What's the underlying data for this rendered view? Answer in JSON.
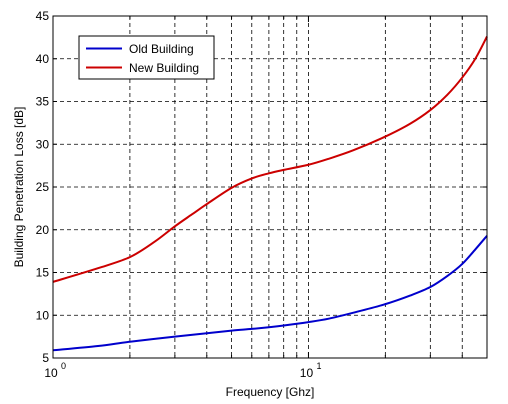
{
  "chart_data": {
    "type": "line",
    "xlabel": "Frequency [Ghz]",
    "ylabel": "Building Penetration Loss [dB]",
    "xscale": "log",
    "xlim": [
      1,
      50
    ],
    "ylim": [
      5,
      45
    ],
    "grid": true,
    "legend_position": "top-left",
    "y_ticks": [
      5,
      10,
      15,
      20,
      25,
      30,
      35,
      40,
      45
    ],
    "x_major_ticks": [
      {
        "value": 1,
        "base": "10",
        "exp": "0"
      },
      {
        "value": 10,
        "base": "10",
        "exp": "1"
      }
    ],
    "x_minor_ticks": [
      2,
      3,
      4,
      5,
      6,
      7,
      8,
      9,
      20,
      30,
      40
    ],
    "series": [
      {
        "name": "Old Building",
        "color": "#0000cc",
        "x": [
          1,
          1.5,
          2,
          3,
          4,
          5,
          6,
          7,
          8,
          10,
          12,
          15,
          20,
          25,
          30,
          35,
          40,
          45,
          50
        ],
        "y": [
          5.9,
          6.4,
          6.9,
          7.5,
          7.9,
          8.2,
          8.4,
          8.6,
          8.8,
          9.2,
          9.6,
          10.3,
          11.3,
          12.3,
          13.3,
          14.6,
          16.0,
          17.7,
          19.3
        ]
      },
      {
        "name": "New Building",
        "color": "#cc0000",
        "x": [
          1,
          1.5,
          2,
          2.5,
          3,
          3.5,
          4,
          5,
          6,
          7,
          8,
          10,
          12,
          15,
          20,
          25,
          30,
          35,
          40,
          45,
          50
        ],
        "y": [
          13.9,
          15.5,
          16.8,
          18.6,
          20.4,
          21.8,
          23.0,
          24.9,
          26.0,
          26.6,
          27.0,
          27.6,
          28.3,
          29.3,
          30.9,
          32.4,
          34.0,
          35.8,
          37.8,
          40.0,
          42.6
        ]
      }
    ]
  }
}
